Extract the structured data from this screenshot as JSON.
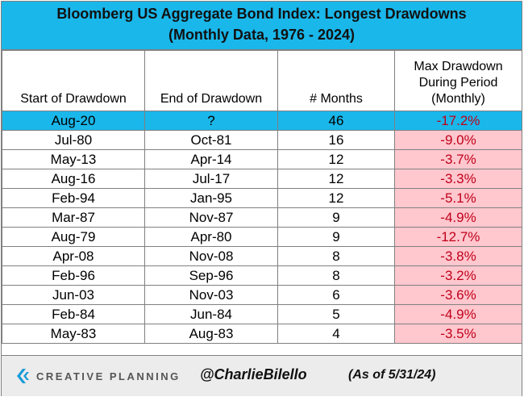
{
  "chart_data": {
    "type": "table",
    "title": "Bloomberg US Aggregate Bond Index: Longest Drawdowns",
    "subtitle": "(Monthly Data, 1976 - 2024)",
    "columns": [
      "Start of Drawdown",
      "End of Drawdown",
      "# Months",
      "Max Drawdown During Period (Monthly)"
    ],
    "rows": [
      {
        "start": "Aug-20",
        "end": "?",
        "months": "46",
        "max_drawdown": "-17.2%",
        "highlight": true
      },
      {
        "start": "Jul-80",
        "end": "Oct-81",
        "months": "16",
        "max_drawdown": "-9.0%"
      },
      {
        "start": "May-13",
        "end": "Apr-14",
        "months": "12",
        "max_drawdown": "-3.7%"
      },
      {
        "start": "Aug-16",
        "end": "Jul-17",
        "months": "12",
        "max_drawdown": "-3.3%"
      },
      {
        "start": "Feb-94",
        "end": "Jan-95",
        "months": "12",
        "max_drawdown": "-5.1%"
      },
      {
        "start": "Mar-87",
        "end": "Nov-87",
        "months": "9",
        "max_drawdown": "-4.9%"
      },
      {
        "start": "Aug-79",
        "end": "Apr-80",
        "months": "9",
        "max_drawdown": "-12.7%"
      },
      {
        "start": "Apr-08",
        "end": "Nov-08",
        "months": "8",
        "max_drawdown": "-3.8%"
      },
      {
        "start": "Feb-96",
        "end": "Sep-96",
        "months": "8",
        "max_drawdown": "-3.2%"
      },
      {
        "start": "Jun-03",
        "end": "Nov-03",
        "months": "6",
        "max_drawdown": "-3.6%"
      },
      {
        "start": "Feb-84",
        "end": "Jun-84",
        "months": "5",
        "max_drawdown": "-4.9%"
      },
      {
        "start": "May-83",
        "end": "Aug-83",
        "months": "4",
        "max_drawdown": "-3.5%"
      }
    ]
  },
  "header": {
    "col1": "Start of Drawdown",
    "col2": "End of Drawdown",
    "col3": "# Months",
    "col4_line1": "Max Drawdown",
    "col4_line2": "During Period",
    "col4_line3": "(Monthly)"
  },
  "footer": {
    "brand": "CREATIVE PLANNING",
    "handle": "@CharlieBilello",
    "as_of": "(As of 5/31/24)"
  },
  "colors": {
    "title_bg": "#1ab7ea",
    "highlight_row": "#1ab7ea",
    "drawdown_cell_bg": "#ffc7ce",
    "drawdown_text": "#c0001a",
    "footer_bg": "#ececec"
  },
  "icons": {
    "brand_logo": "creative-planning-logo-icon"
  }
}
